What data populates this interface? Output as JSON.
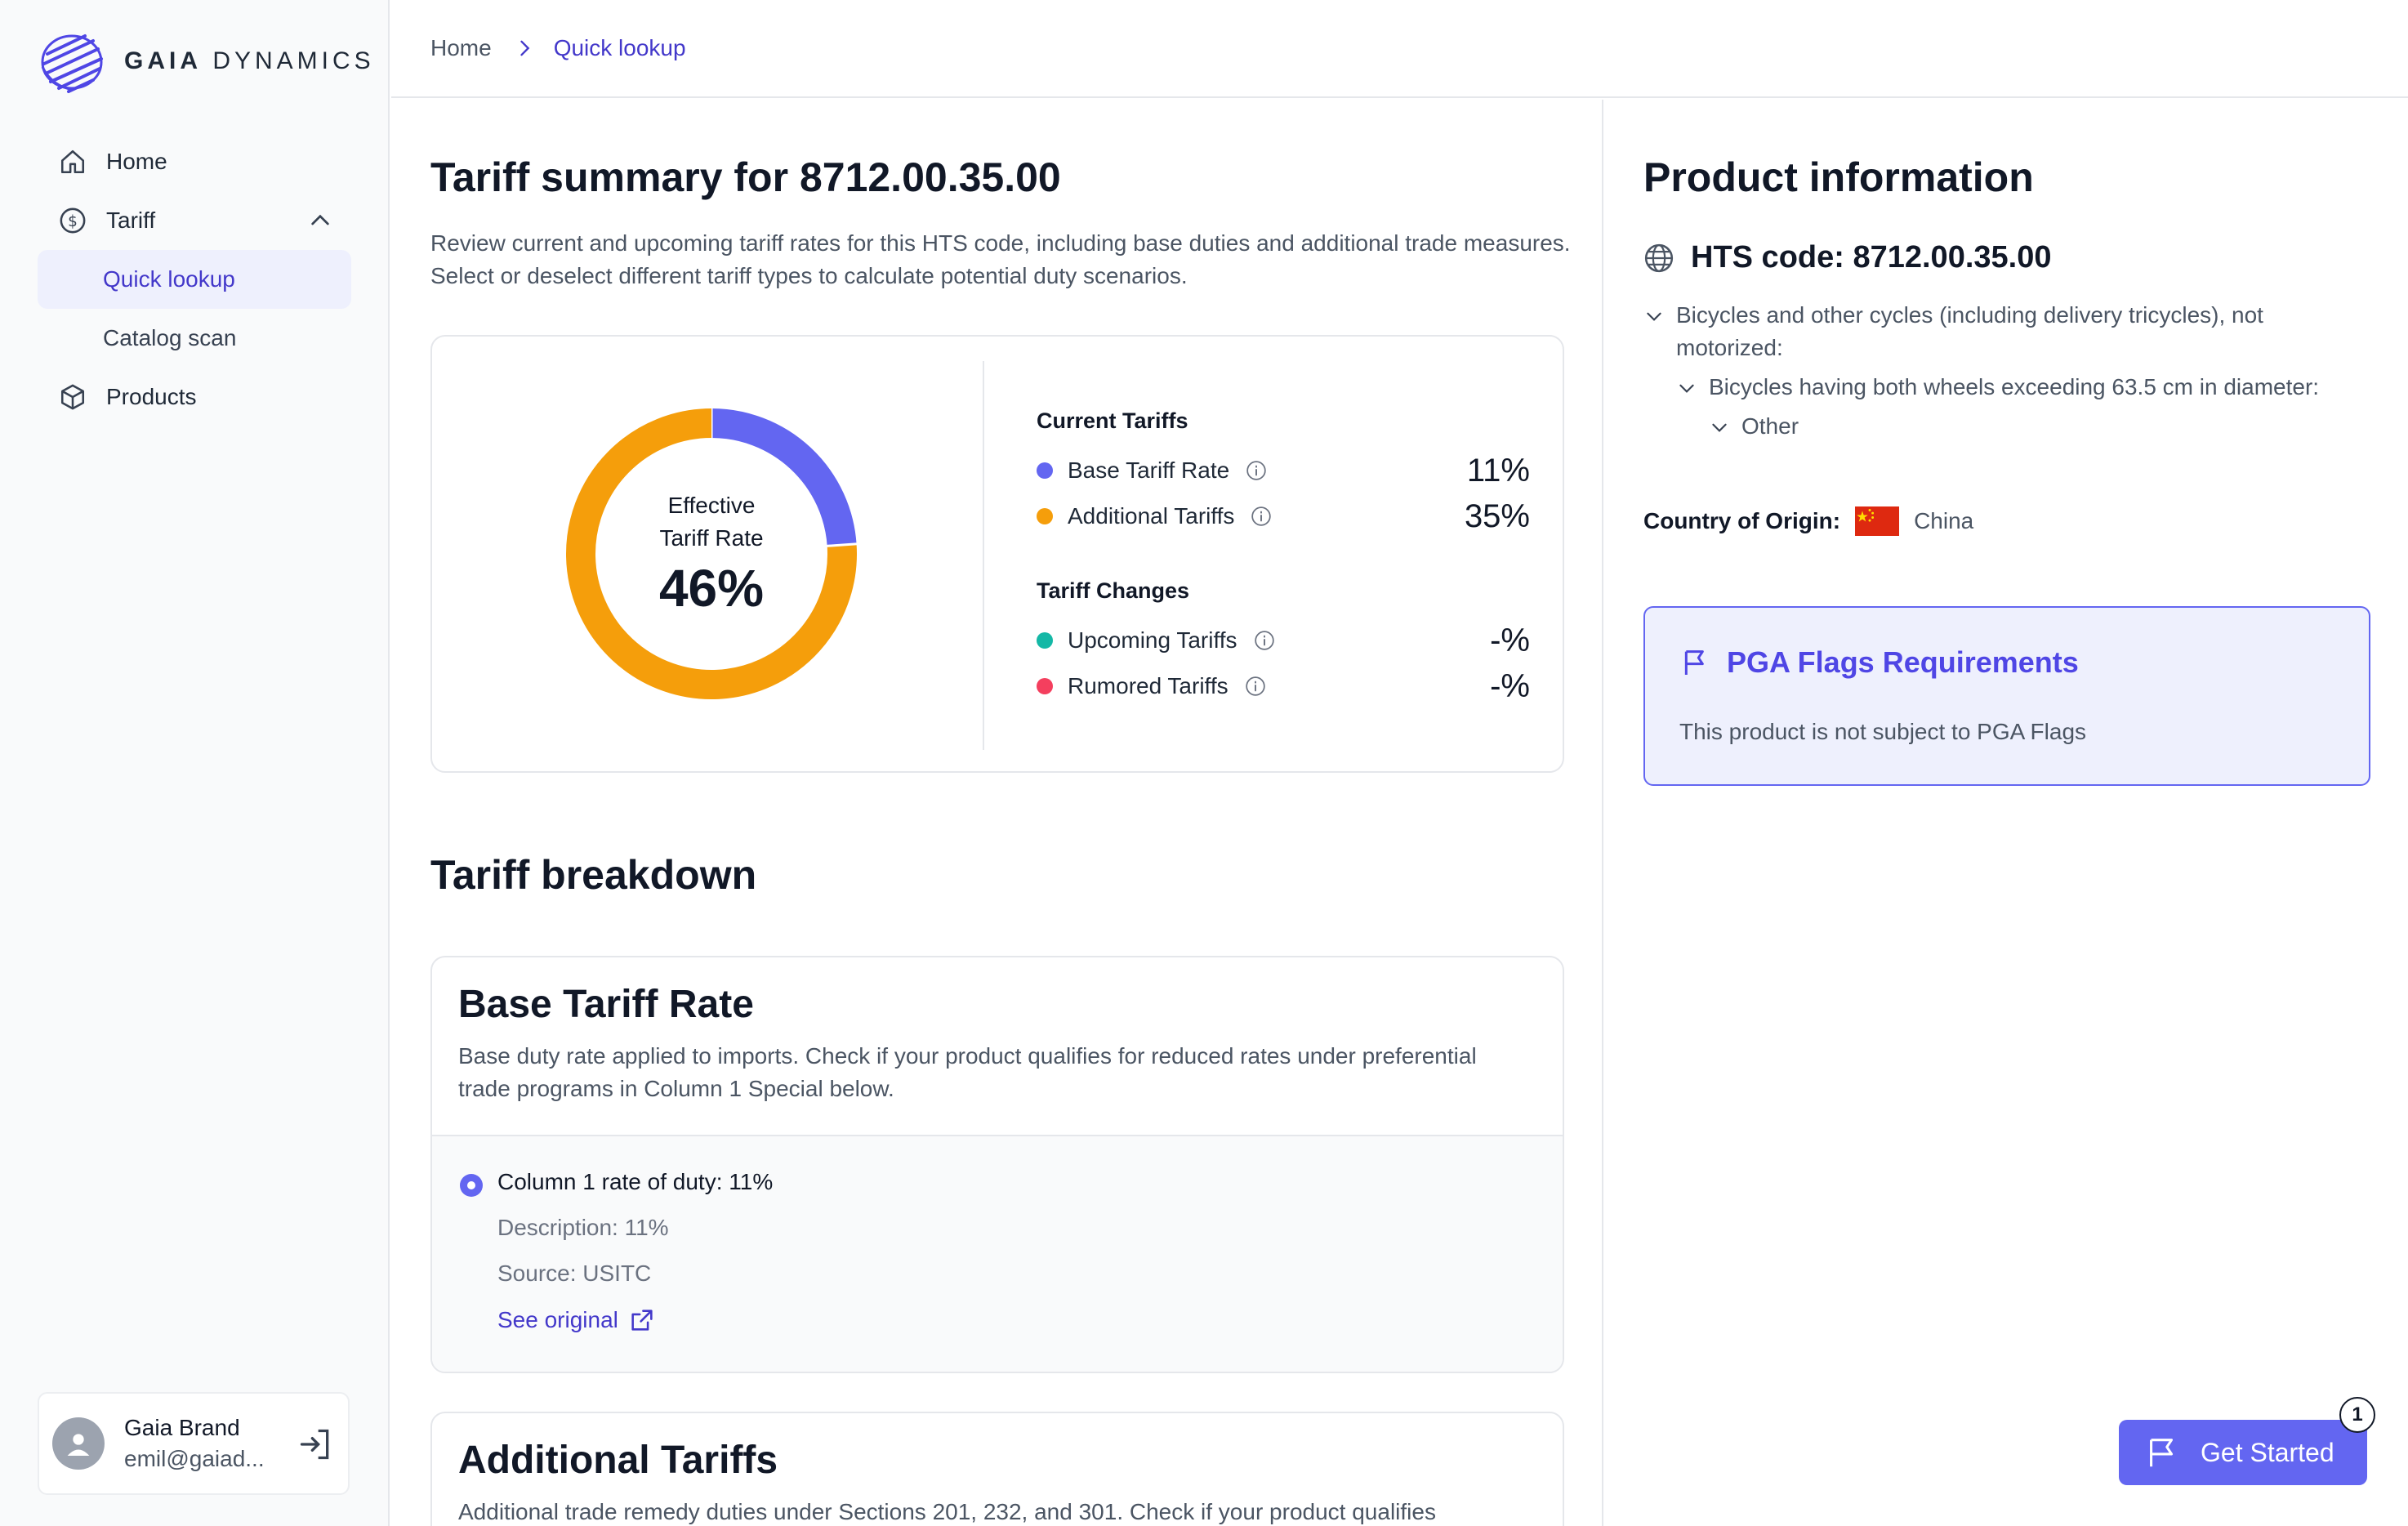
{
  "brand": {
    "name_bold": "GAIA",
    "name_rest": " DYNAMICS"
  },
  "sidebar": {
    "items": [
      {
        "label": "Home",
        "icon": "home-icon"
      },
      {
        "label": "Tariff",
        "icon": "dollar-circle-icon",
        "expanded": true,
        "children": [
          {
            "label": "Quick lookup",
            "active": true
          },
          {
            "label": "Catalog scan"
          }
        ]
      },
      {
        "label": "Products",
        "icon": "box-icon"
      }
    ]
  },
  "user": {
    "name": "Gaia Brand",
    "email": "emil@gaiad..."
  },
  "breadcrumb": {
    "home": "Home",
    "current": "Quick lookup"
  },
  "summary": {
    "title": "Tariff summary for 8712.00.35.00",
    "intro": "Review current and upcoming tariff rates for this HTS code, including base duties and additional trade measures. Select or deselect different tariff types to calculate potential duty scenarios.",
    "donut_label": "Effective Tariff Rate",
    "effective_rate": "46%",
    "current_title": "Current Tariffs",
    "changes_title": "Tariff Changes",
    "rows": [
      {
        "label": "Base Tariff Rate",
        "value": "11%",
        "color": "#6366f1"
      },
      {
        "label": "Additional Tariffs",
        "value": "35%",
        "color": "#f59e0b"
      },
      {
        "label": "Upcoming Tariffs",
        "value": "-%",
        "color": "#14b8a6"
      },
      {
        "label": "Rumored Tariffs",
        "value": "-%",
        "color": "#f43f5e"
      }
    ]
  },
  "chart_data": {
    "type": "pie",
    "categories": [
      "Base Tariff Rate",
      "Additional Tariffs"
    ],
    "values": [
      11,
      35
    ],
    "colors": [
      "#6366f1",
      "#f59e0b"
    ],
    "title": "Effective Tariff Rate",
    "center_value": "46%"
  },
  "breakdown": {
    "title": "Tariff breakdown",
    "base": {
      "title": "Base Tariff Rate",
      "desc": "Base duty rate applied to imports. Check if your product qualifies for reduced rates under preferential trade programs in Column 1 Special below.",
      "option": "Column 1 rate of duty: 11%",
      "description": "Description: 11%",
      "source": "Source: USITC",
      "link": "See original"
    },
    "additional": {
      "title": "Additional Tariffs",
      "desc": "Additional trade remedy duties under Sections 201, 232, and 301. Check if your product qualifies"
    }
  },
  "product": {
    "title": "Product information",
    "hts": "HTS code: 8712.00.35.00",
    "tree": [
      "Bicycles and other cycles (including delivery tricycles), not motorized:",
      "Bicycles having both wheels exceeding 63.5 cm in diameter:",
      "Other"
    ],
    "origin_label": "Country of Origin:",
    "origin": "China",
    "pga_title": "PGA Flags Requirements",
    "pga_text": "This product is not subject to PGA Flags"
  },
  "get_started": {
    "label": "Get Started",
    "badge": "1"
  }
}
